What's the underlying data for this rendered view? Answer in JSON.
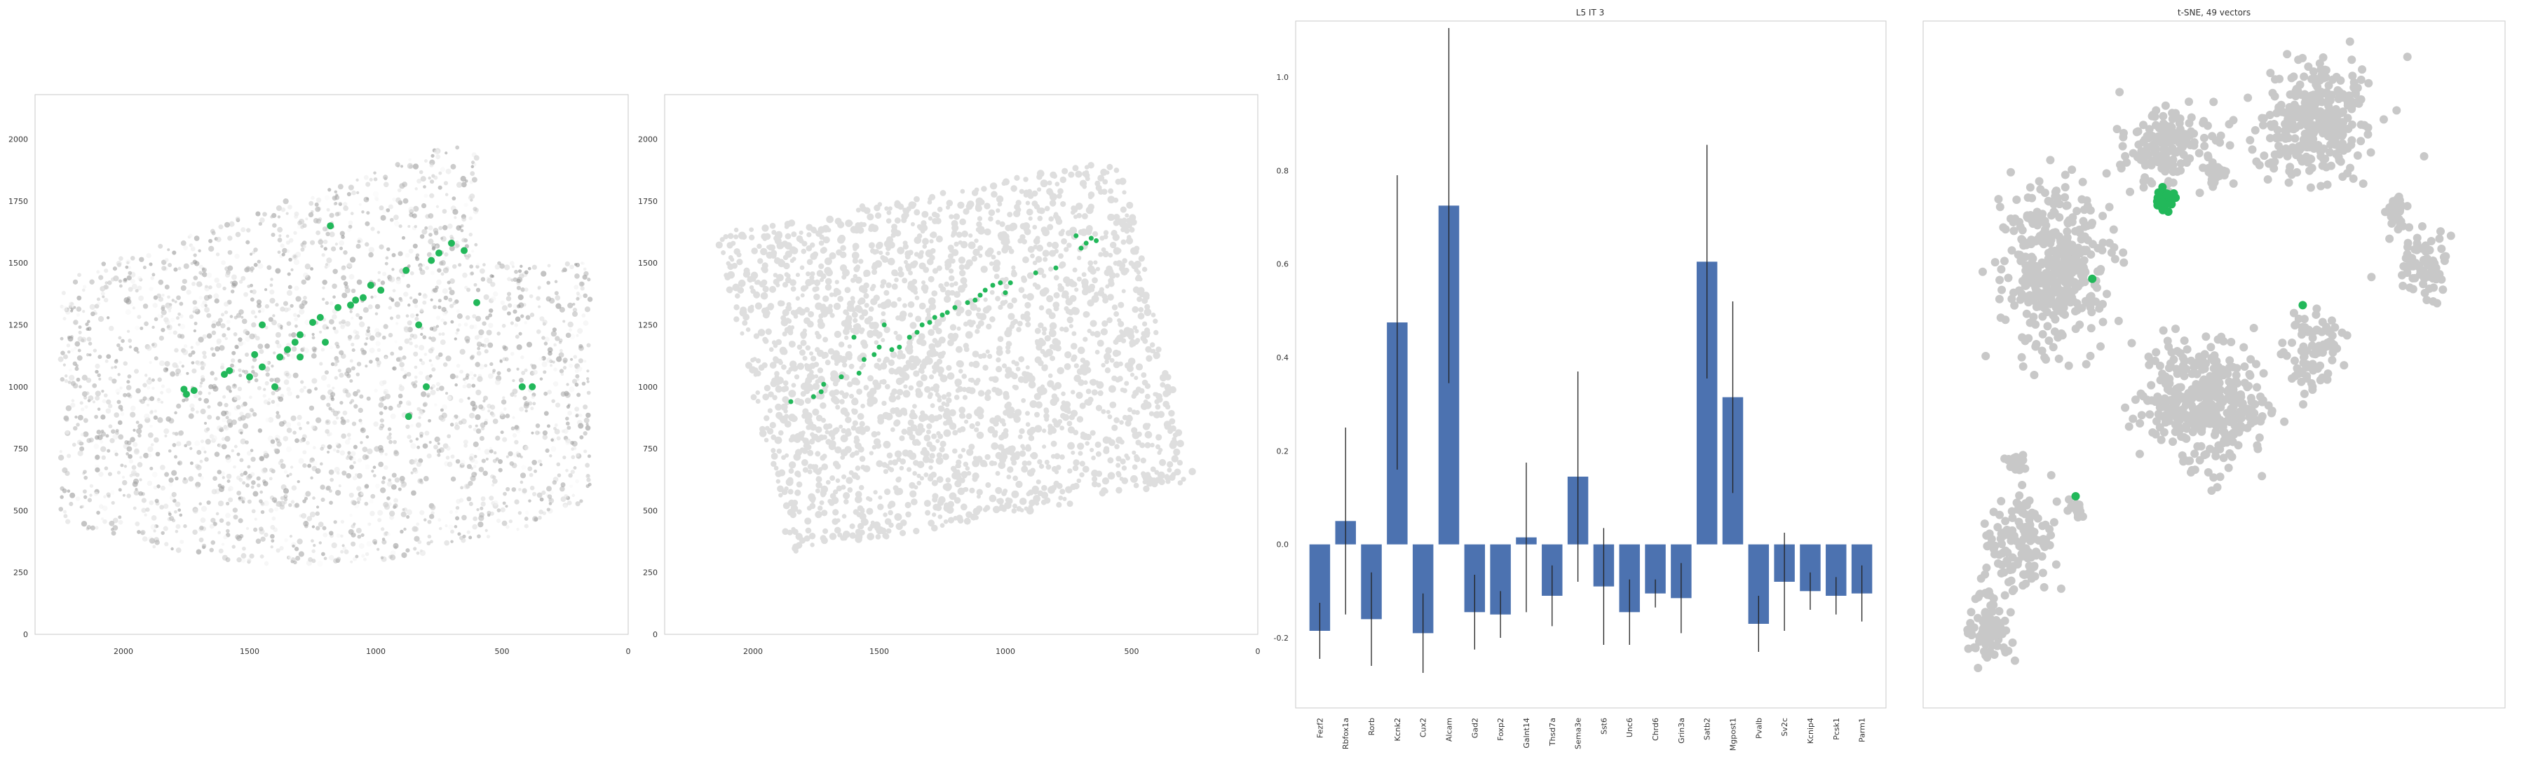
{
  "chart_data": [
    {
      "type": "scatter",
      "panel": "spatial-expression",
      "title": "",
      "xlim": [
        2350,
        0
      ],
      "ylim": [
        2180,
        0
      ],
      "xticks": [
        2000,
        1500,
        1000,
        500,
        0
      ],
      "yticks": [
        0,
        250,
        500,
        750,
        1000,
        1250,
        1500,
        1750,
        2000
      ],
      "highlight_color": "#22b85a",
      "background": "grayscale cell expression",
      "highlight_points": [
        [
          1750,
          970
        ],
        [
          1720,
          985
        ],
        [
          1600,
          1050
        ],
        [
          1580,
          1065
        ],
        [
          1500,
          1040
        ],
        [
          1450,
          1080
        ],
        [
          1380,
          1120
        ],
        [
          1350,
          1150
        ],
        [
          1320,
          1180
        ],
        [
          1300,
          1210
        ],
        [
          1250,
          1260
        ],
        [
          1220,
          1280
        ],
        [
          1200,
          1180
        ],
        [
          1100,
          1330
        ],
        [
          1080,
          1350
        ],
        [
          1050,
          1360
        ],
        [
          1020,
          1410
        ],
        [
          980,
          1390
        ],
        [
          880,
          1470
        ],
        [
          780,
          1510
        ],
        [
          750,
          1540
        ],
        [
          700,
          1580
        ],
        [
          650,
          1550
        ],
        [
          830,
          1250
        ],
        [
          800,
          1000
        ],
        [
          600,
          1340
        ],
        [
          420,
          1000
        ],
        [
          380,
          1000
        ],
        [
          1150,
          1320
        ],
        [
          1480,
          1130
        ],
        [
          1400,
          1000
        ],
        [
          1450,
          1250
        ],
        [
          1300,
          1120
        ],
        [
          1180,
          1650
        ],
        [
          870,
          880
        ],
        [
          1760,
          990
        ]
      ]
    },
    {
      "type": "scatter",
      "panel": "spatial-cells",
      "title": "",
      "xlim": [
        2350,
        0
      ],
      "ylim": [
        2180,
        0
      ],
      "xticks": [
        2000,
        1500,
        1000,
        500,
        0
      ],
      "yticks": [
        0,
        250,
        500,
        750,
        1000,
        1250,
        1500,
        1750,
        2000
      ],
      "highlight_color": "#22b85a",
      "background_color": "#dedede",
      "highlight_points": [
        [
          1850,
          940
        ],
        [
          1760,
          960
        ],
        [
          1730,
          980
        ],
        [
          1720,
          1010
        ],
        [
          1650,
          1040
        ],
        [
          1580,
          1055
        ],
        [
          1560,
          1110
        ],
        [
          1520,
          1130
        ],
        [
          1500,
          1160
        ],
        [
          1450,
          1150
        ],
        [
          1420,
          1160
        ],
        [
          1380,
          1200
        ],
        [
          1350,
          1220
        ],
        [
          1330,
          1250
        ],
        [
          1300,
          1260
        ],
        [
          1280,
          1280
        ],
        [
          1250,
          1290
        ],
        [
          1230,
          1300
        ],
        [
          1200,
          1320
        ],
        [
          1150,
          1340
        ],
        [
          1120,
          1350
        ],
        [
          1100,
          1370
        ],
        [
          1080,
          1390
        ],
        [
          1050,
          1410
        ],
        [
          1020,
          1420
        ],
        [
          1000,
          1380
        ],
        [
          980,
          1420
        ],
        [
          880,
          1460
        ],
        [
          800,
          1480
        ],
        [
          700,
          1560
        ],
        [
          680,
          1580
        ],
        [
          660,
          1600
        ],
        [
          720,
          1610
        ],
        [
          1600,
          1200
        ],
        [
          1480,
          1250
        ],
        [
          640,
          1590
        ]
      ]
    },
    {
      "type": "bar",
      "panel": "marker-genes",
      "title": "L5 IT 3",
      "ylim": [
        -0.35,
        1.12
      ],
      "yticks": [
        -0.2,
        0.0,
        0.2,
        0.4,
        0.6,
        0.8,
        1.0
      ],
      "bar_color": "#4c72b0",
      "categories": [
        "Fezf2",
        "Rbfox1a",
        "Rorb",
        "Kcnk2",
        "Cux2",
        "Alcam",
        "Gad2",
        "Foxp2",
        "Galnt14",
        "Thsd7a",
        "Sema3e",
        "Sst6",
        "Unc6",
        "Chrd6",
        "Grin3a",
        "Satb2",
        "Mgpost1",
        "Pvalb",
        "Sv2c",
        "Kcnip4",
        "Pcsk1",
        "Parm1"
      ],
      "values": [
        -0.185,
        0.05,
        -0.16,
        0.475,
        -0.19,
        0.725,
        -0.145,
        -0.15,
        0.015,
        -0.11,
        0.145,
        -0.09,
        -0.145,
        -0.105,
        -0.115,
        0.605,
        0.315,
        -0.17,
        -0.08,
        -0.1,
        -0.11,
        -0.105
      ],
      "errors": [
        0.06,
        0.2,
        0.1,
        0.315,
        0.085,
        0.38,
        0.08,
        0.05,
        0.16,
        0.065,
        0.225,
        0.125,
        0.07,
        0.03,
        0.075,
        0.25,
        0.205,
        0.06,
        0.105,
        0.04,
        0.04,
        0.06
      ]
    },
    {
      "type": "scatter",
      "panel": "tsne",
      "title": "t-SNE, 49 vectors",
      "point_color": "#c8c8c8",
      "highlight_color": "#22b85a",
      "clusters": [
        {
          "cx": 0.69,
          "cy": 0.13,
          "sx": 0.1,
          "sy": 0.085,
          "n": 320
        },
        {
          "cx": 0.42,
          "cy": 0.17,
          "sx": 0.08,
          "sy": 0.06,
          "n": 180
        },
        {
          "cx": 0.21,
          "cy": 0.35,
          "sx": 0.09,
          "sy": 0.11,
          "n": 420
        },
        {
          "cx": 0.48,
          "cy": 0.56,
          "sx": 0.11,
          "sy": 0.09,
          "n": 400
        },
        {
          "cx": 0.68,
          "cy": 0.48,
          "sx": 0.06,
          "sy": 0.06,
          "n": 90
        },
        {
          "cx": 0.88,
          "cy": 0.35,
          "sx": 0.04,
          "sy": 0.045,
          "n": 80
        },
        {
          "cx": 0.15,
          "cy": 0.77,
          "sx": 0.06,
          "sy": 0.07,
          "n": 130
        },
        {
          "cx": 0.09,
          "cy": 0.9,
          "sx": 0.04,
          "sy": 0.05,
          "n": 90
        },
        {
          "cx": 0.83,
          "cy": 0.27,
          "sx": 0.02,
          "sy": 0.025,
          "n": 40
        },
        {
          "cx": 0.14,
          "cy": 0.65,
          "sx": 0.02,
          "sy": 0.02,
          "n": 25
        },
        {
          "cx": 0.51,
          "cy": 0.21,
          "sx": 0.02,
          "sy": 0.015,
          "n": 20
        },
        {
          "cx": 0.25,
          "cy": 0.72,
          "sx": 0.015,
          "sy": 0.015,
          "n": 15
        }
      ],
      "highlight_cluster": {
        "cx": 0.41,
        "cy": 0.25,
        "sx": 0.012,
        "sy": 0.012,
        "n": 45
      },
      "highlight_singletons": [
        [
          0.28,
          0.37
        ],
        [
          0.66,
          0.41
        ],
        [
          0.25,
          0.7
        ]
      ]
    }
  ]
}
